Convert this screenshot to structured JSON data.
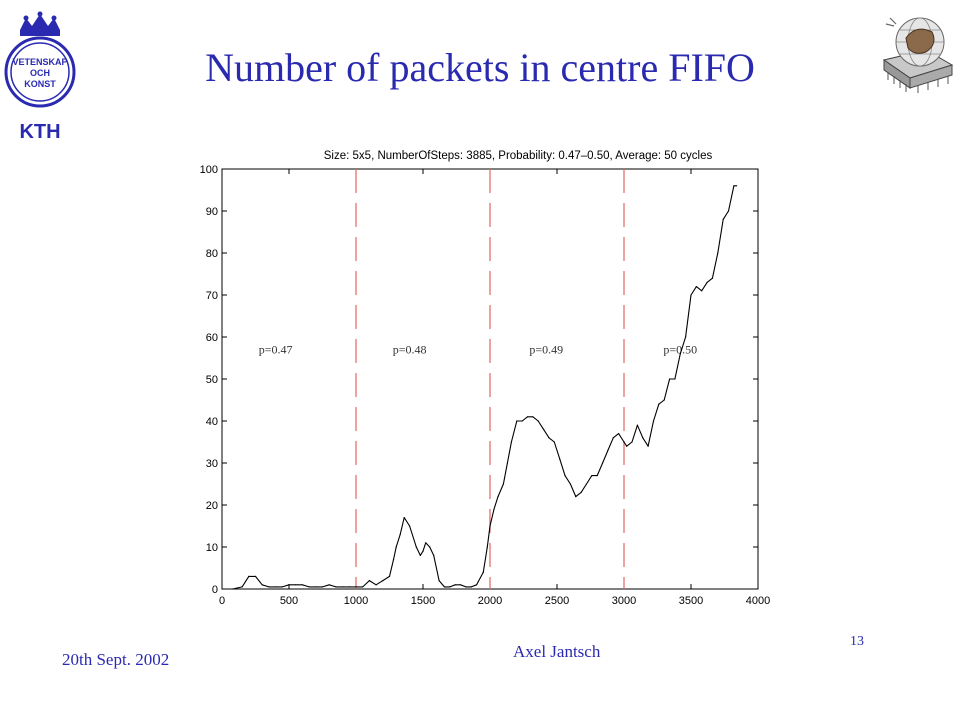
{
  "slide": {
    "title": "Number of packets in centre FIFO",
    "footer_date": "20th Sept. 2002",
    "footer_author": "Axel Jantsch",
    "page_number": "13",
    "logo_text": [
      "VETENSKAP",
      "OCH",
      "KONST",
      "KTH"
    ]
  },
  "colors": {
    "title": "#2a2ab0",
    "divider": "#e07070",
    "line": "#000000",
    "logo": "#2a2ab0"
  },
  "chart_data": {
    "type": "line",
    "title": "Size: 5x5, NumberOfSteps: 3885, Probability: 0.47–0.50, Average: 50 cycles",
    "xlim": [
      0,
      4000
    ],
    "ylim": [
      0,
      100
    ],
    "xticks": [
      0,
      500,
      1000,
      1500,
      2000,
      2500,
      3000,
      3500,
      4000
    ],
    "yticks": [
      0,
      10,
      20,
      30,
      40,
      50,
      60,
      70,
      80,
      90,
      100
    ],
    "dividers": [
      1000,
      2000,
      3000
    ],
    "annotations": [
      {
        "text": "p=0.47",
        "x": 400,
        "y": 57
      },
      {
        "text": "p=0.48",
        "x": 1400,
        "y": 57
      },
      {
        "text": "p=0.49",
        "x": 2420,
        "y": 57
      },
      {
        "text": "p=0.50",
        "x": 3420,
        "y": 57
      }
    ],
    "series": [
      {
        "x": [
          0,
          80,
          150,
          200,
          250,
          300,
          350,
          400,
          450,
          500,
          550,
          600,
          650,
          700,
          750,
          800,
          850,
          900,
          950,
          1000,
          1050,
          1100,
          1150,
          1200,
          1250,
          1280,
          1300,
          1330,
          1360,
          1400,
          1450,
          1480,
          1500,
          1520,
          1550,
          1580,
          1620,
          1660,
          1700,
          1740,
          1780,
          1820,
          1860,
          1900,
          1950,
          1980,
          2000,
          2030,
          2060,
          2100,
          2130,
          2160,
          2200,
          2240,
          2280,
          2320,
          2360,
          2400,
          2440,
          2480,
          2520,
          2560,
          2600,
          2640,
          2680,
          2720,
          2760,
          2800,
          2840,
          2880,
          2920,
          2960,
          3000,
          3020,
          3060,
          3100,
          3140,
          3180,
          3220,
          3260,
          3300,
          3340,
          3380,
          3420,
          3460,
          3500,
          3540,
          3580,
          3620,
          3660,
          3700,
          3740,
          3780,
          3820,
          3840
        ],
        "y": [
          0,
          0,
          0.5,
          3,
          3,
          1,
          0.5,
          0.5,
          0.5,
          1,
          1,
          1,
          0.5,
          0.5,
          0.5,
          1,
          0.5,
          0.5,
          0.5,
          0.5,
          0.5,
          2,
          1,
          2,
          3,
          7,
          10,
          13,
          17,
          15,
          10,
          8,
          9,
          11,
          10,
          8,
          2,
          0.5,
          0.5,
          1,
          1,
          0.5,
          0.5,
          1,
          4,
          10,
          15,
          19,
          22,
          25,
          30,
          35,
          40,
          40,
          41,
          41,
          40,
          38,
          36,
          35,
          31,
          27,
          25,
          22,
          23,
          25,
          27,
          27,
          30,
          33,
          36,
          37,
          35,
          34,
          35,
          39,
          36,
          34,
          40,
          44,
          45,
          50,
          50,
          56,
          60,
          70,
          72,
          71,
          73,
          74,
          80,
          88,
          90,
          96,
          96
        ]
      }
    ]
  }
}
